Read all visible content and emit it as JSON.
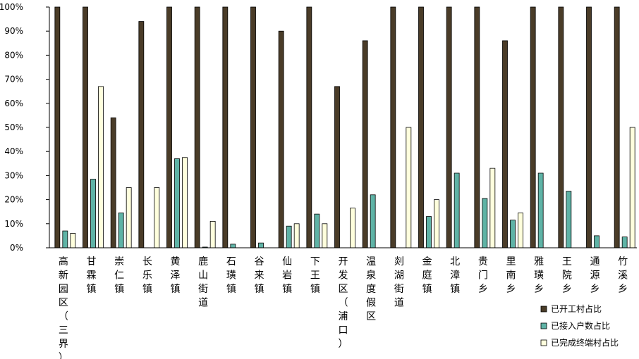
{
  "chart_data": {
    "type": "bar",
    "title": "",
    "xlabel": "",
    "ylabel": "",
    "ylim": [
      0,
      100
    ],
    "yticks": [
      "0%",
      "10%",
      "20%",
      "30%",
      "40%",
      "50%",
      "60%",
      "70%",
      "80%",
      "90%",
      "100%"
    ],
    "grid": false,
    "legend_position": "bottom-right",
    "categories": [
      "高新园区（三界）",
      "甘霖镇",
      "崇仁镇",
      "长乐镇",
      "黄泽镇",
      "鹿山街道",
      "石璜镇",
      "谷来镇",
      "仙岩镇",
      "下王镇",
      "开发区（浦口）",
      "温泉度假区",
      "剡湖街道",
      "金庭镇",
      "北漳镇",
      "贵门乡",
      "里南乡",
      "雅璜乡",
      "王院乡",
      "通源乡",
      "竹溪乡"
    ],
    "series": [
      {
        "name": "已开工村占比",
        "color": "#4a3c28",
        "values": [
          100,
          100,
          54,
          94,
          100,
          100,
          100,
          100,
          90,
          100,
          67,
          86,
          100,
          100,
          100,
          100,
          86,
          100,
          100,
          100,
          100
        ]
      },
      {
        "name": "已接入户数占比",
        "color": "#5fb3a6",
        "values": [
          7,
          28.5,
          14.5,
          0,
          37,
          0.3,
          1.5,
          2,
          9,
          14,
          0,
          22,
          0,
          13,
          31,
          20.5,
          11.5,
          31,
          23.5,
          5,
          4.5
        ]
      },
      {
        "name": "已完成终端村占比",
        "color": "#ffffdd",
        "values": [
          6,
          67,
          25,
          25,
          37.5,
          11,
          0,
          0,
          10,
          10,
          16.5,
          0,
          50,
          20,
          0,
          33,
          14.5,
          0,
          0,
          0,
          50
        ]
      }
    ]
  }
}
